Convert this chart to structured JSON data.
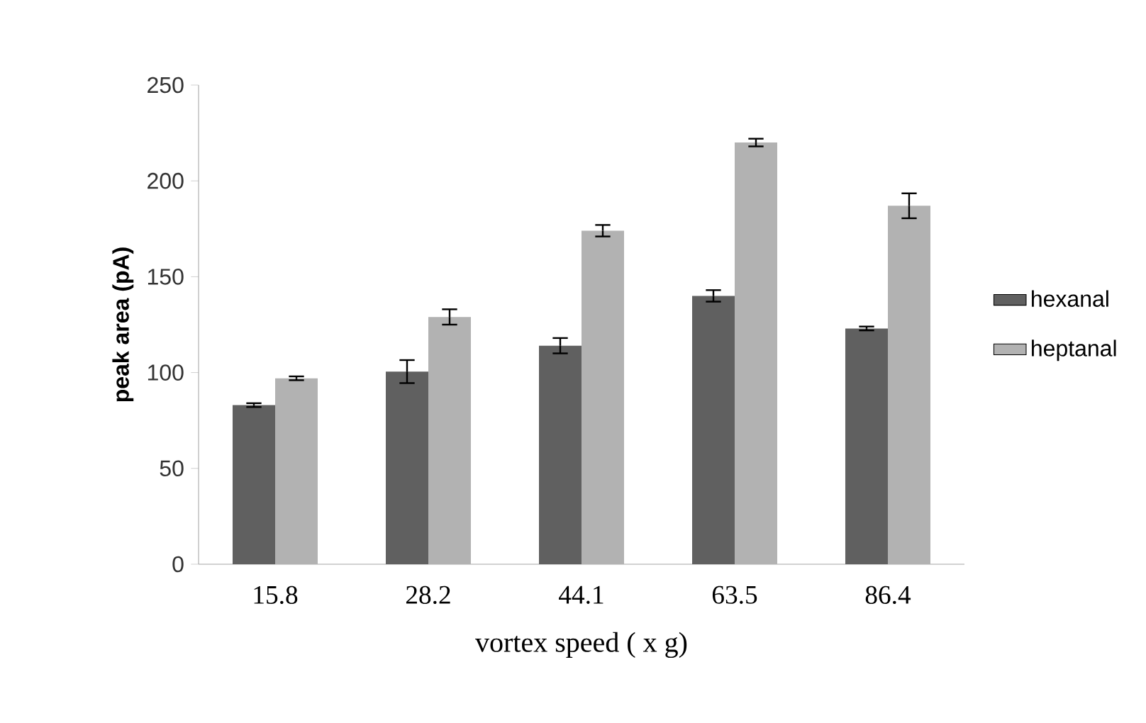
{
  "chart_data": {
    "type": "bar",
    "xlabel": "vortex speed ( x g)",
    "ylabel": "peak area (pA)",
    "categories": [
      "15.8",
      "28.2",
      "44.1",
      "63.5",
      "86.4"
    ],
    "series": [
      {
        "name": "hexanal",
        "color": "#606060",
        "values": [
          83,
          100.5,
          114,
          140,
          123
        ],
        "errors": [
          1,
          6,
          4,
          3,
          1
        ]
      },
      {
        "name": "heptanal",
        "color": "#b2b2b2",
        "values": [
          97,
          129,
          174,
          220,
          187
        ],
        "errors": [
          1,
          4,
          3,
          2,
          6.5
        ]
      }
    ],
    "ylim": [
      0,
      250
    ],
    "yticks": [
      0,
      50,
      100,
      150,
      200,
      250
    ],
    "legend": "right"
  }
}
